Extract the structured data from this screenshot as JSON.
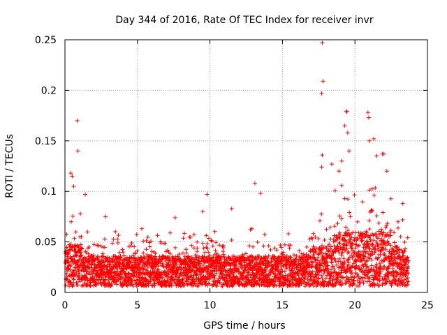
{
  "chart_data": {
    "type": "scatter",
    "title": "Day 344 of 2016, Rate Of TEC Index for receiver invr",
    "xlabel": "GPS time / hours",
    "ylabel": "ROTI / TECUs",
    "xlim": [
      0,
      25
    ],
    "ylim": [
      0,
      0.25
    ],
    "xticks": [
      0,
      5,
      10,
      15,
      20,
      25
    ],
    "yticks": [
      0,
      0.05,
      0.1,
      0.15,
      0.2,
      0.25
    ],
    "xtick_labels": [
      "0",
      "5",
      "10",
      "15",
      "20",
      "25"
    ],
    "ytick_labels": [
      "0",
      "0.05",
      "0.1",
      "0.15",
      "0.2",
      "0.25"
    ],
    "grid": true,
    "marker": "+",
    "series": [
      {
        "name": "ROTI",
        "color": "#ff0000",
        "points": [
          [
            0.4,
            0.118
          ],
          [
            0.5,
            0.115
          ],
          [
            0.6,
            0.105
          ],
          [
            0.85,
            0.17
          ],
          [
            0.9,
            0.14
          ],
          [
            1.4,
            0.097
          ],
          [
            2.8,
            0.075
          ],
          [
            5.3,
            0.063
          ],
          [
            7.6,
            0.074
          ],
          [
            9.5,
            0.08
          ],
          [
            9.8,
            0.097
          ],
          [
            11.5,
            0.083
          ],
          [
            13.1,
            0.108
          ],
          [
            13.5,
            0.098
          ],
          [
            17.75,
            0.247
          ],
          [
            17.8,
            0.209
          ],
          [
            17.7,
            0.197
          ],
          [
            17.75,
            0.136
          ],
          [
            17.7,
            0.124
          ],
          [
            18.4,
            0.127
          ],
          [
            18.9,
            0.12
          ],
          [
            19.1,
            0.13
          ],
          [
            19.3,
            0.165
          ],
          [
            19.4,
            0.179
          ],
          [
            19.45,
            0.179
          ],
          [
            19.5,
            0.158
          ],
          [
            19.6,
            0.14
          ],
          [
            20.9,
            0.178
          ],
          [
            20.95,
            0.173
          ],
          [
            21.0,
            0.15
          ],
          [
            21.3,
            0.152
          ],
          [
            21.5,
            0.135
          ],
          [
            21.9,
            0.137
          ],
          [
            22.0,
            0.137
          ],
          [
            22.2,
            0.12
          ],
          [
            23.3,
            0.088
          ]
        ]
      }
    ]
  }
}
